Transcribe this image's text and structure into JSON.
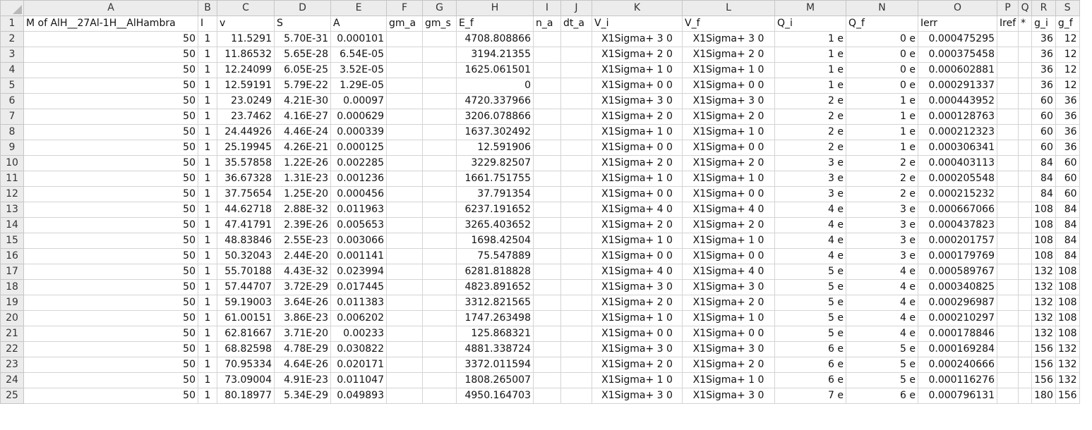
{
  "columns": [
    "A",
    "B",
    "C",
    "D",
    "E",
    "F",
    "G",
    "H",
    "I",
    "J",
    "K",
    "L",
    "M",
    "N",
    "O",
    "P",
    "Q",
    "R",
    "S"
  ],
  "header_row": [
    "M of AlH__27Al-1H__AlHambra",
    "I",
    "v",
    "S",
    "A",
    "gm_a",
    "gm_s",
    "E_f",
    "n_a",
    "dt_a",
    "V_i",
    "V_f",
    "Q_i",
    "Q_f",
    "Ierr",
    "Iref",
    "*",
    "g_i",
    "g_f"
  ],
  "rows": [
    {
      "n": "2",
      "c": [
        "50",
        "1",
        "11.5291",
        "5.70E-31",
        "0.000101",
        "",
        "",
        "4708.808866",
        "",
        "",
        "X1Sigma+ 3 0",
        "X1Sigma+ 3 0",
        "1 e",
        "0 e",
        "0.000475295",
        "",
        "",
        "36",
        "12"
      ]
    },
    {
      "n": "3",
      "c": [
        "50",
        "1",
        "11.86532",
        "5.65E-28",
        "6.54E-05",
        "",
        "",
        "3194.21355",
        "",
        "",
        "X1Sigma+ 2 0",
        "X1Sigma+ 2 0",
        "1 e",
        "0 e",
        "0.000375458",
        "",
        "",
        "36",
        "12"
      ]
    },
    {
      "n": "4",
      "c": [
        "50",
        "1",
        "12.24099",
        "6.05E-25",
        "3.52E-05",
        "",
        "",
        "1625.061501",
        "",
        "",
        "X1Sigma+ 1 0",
        "X1Sigma+ 1 0",
        "1 e",
        "0 e",
        "0.000602881",
        "",
        "",
        "36",
        "12"
      ]
    },
    {
      "n": "5",
      "c": [
        "50",
        "1",
        "12.59191",
        "5.79E-22",
        "1.29E-05",
        "",
        "",
        "0",
        "",
        "",
        "X1Sigma+ 0 0",
        "X1Sigma+ 0 0",
        "1 e",
        "0 e",
        "0.000291337",
        "",
        "",
        "36",
        "12"
      ]
    },
    {
      "n": "6",
      "c": [
        "50",
        "1",
        "23.0249",
        "4.21E-30",
        "0.00097",
        "",
        "",
        "4720.337966",
        "",
        "",
        "X1Sigma+ 3 0",
        "X1Sigma+ 3 0",
        "2 e",
        "1 e",
        "0.000443952",
        "",
        "",
        "60",
        "36"
      ]
    },
    {
      "n": "7",
      "c": [
        "50",
        "1",
        "23.7462",
        "4.16E-27",
        "0.000629",
        "",
        "",
        "3206.078866",
        "",
        "",
        "X1Sigma+ 2 0",
        "X1Sigma+ 2 0",
        "2 e",
        "1 e",
        "0.000128763",
        "",
        "",
        "60",
        "36"
      ]
    },
    {
      "n": "8",
      "c": [
        "50",
        "1",
        "24.44926",
        "4.46E-24",
        "0.000339",
        "",
        "",
        "1637.302492",
        "",
        "",
        "X1Sigma+ 1 0",
        "X1Sigma+ 1 0",
        "2 e",
        "1 e",
        "0.000212323",
        "",
        "",
        "60",
        "36"
      ]
    },
    {
      "n": "9",
      "c": [
        "50",
        "1",
        "25.19945",
        "4.26E-21",
        "0.000125",
        "",
        "",
        "12.591906",
        "",
        "",
        "X1Sigma+ 0 0",
        "X1Sigma+ 0 0",
        "2 e",
        "1 e",
        "0.000306341",
        "",
        "",
        "60",
        "36"
      ]
    },
    {
      "n": "10",
      "c": [
        "50",
        "1",
        "35.57858",
        "1.22E-26",
        "0.002285",
        "",
        "",
        "3229.82507",
        "",
        "",
        "X1Sigma+ 2 0",
        "X1Sigma+ 2 0",
        "3 e",
        "2 e",
        "0.000403113",
        "",
        "",
        "84",
        "60"
      ]
    },
    {
      "n": "11",
      "c": [
        "50",
        "1",
        "36.67328",
        "1.31E-23",
        "0.001236",
        "",
        "",
        "1661.751755",
        "",
        "",
        "X1Sigma+ 1 0",
        "X1Sigma+ 1 0",
        "3 e",
        "2 e",
        "0.000205548",
        "",
        "",
        "84",
        "60"
      ]
    },
    {
      "n": "12",
      "c": [
        "50",
        "1",
        "37.75654",
        "1.25E-20",
        "0.000456",
        "",
        "",
        "37.791354",
        "",
        "",
        "X1Sigma+ 0 0",
        "X1Sigma+ 0 0",
        "3 e",
        "2 e",
        "0.000215232",
        "",
        "",
        "84",
        "60"
      ]
    },
    {
      "n": "13",
      "c": [
        "50",
        "1",
        "44.62718",
        "2.88E-32",
        "0.011963",
        "",
        "",
        "6237.191652",
        "",
        "",
        "X1Sigma+ 4 0",
        "X1Sigma+ 4 0",
        "4 e",
        "3 e",
        "0.000667066",
        "",
        "",
        "108",
        "84"
      ]
    },
    {
      "n": "14",
      "c": [
        "50",
        "1",
        "47.41791",
        "2.39E-26",
        "0.005653",
        "",
        "",
        "3265.403652",
        "",
        "",
        "X1Sigma+ 2 0",
        "X1Sigma+ 2 0",
        "4 e",
        "3 e",
        "0.000437823",
        "",
        "",
        "108",
        "84"
      ]
    },
    {
      "n": "15",
      "c": [
        "50",
        "1",
        "48.83846",
        "2.55E-23",
        "0.003066",
        "",
        "",
        "1698.42504",
        "",
        "",
        "X1Sigma+ 1 0",
        "X1Sigma+ 1 0",
        "4 e",
        "3 e",
        "0.000201757",
        "",
        "",
        "108",
        "84"
      ]
    },
    {
      "n": "16",
      "c": [
        "50",
        "1",
        "50.32043",
        "2.44E-20",
        "0.001141",
        "",
        "",
        "75.547889",
        "",
        "",
        "X1Sigma+ 0 0",
        "X1Sigma+ 0 0",
        "4 e",
        "3 e",
        "0.000179769",
        "",
        "",
        "108",
        "84"
      ]
    },
    {
      "n": "17",
      "c": [
        "50",
        "1",
        "55.70188",
        "4.43E-32",
        "0.023994",
        "",
        "",
        "6281.818828",
        "",
        "",
        "X1Sigma+ 4 0",
        "X1Sigma+ 4 0",
        "5 e",
        "4 e",
        "0.000589767",
        "",
        "",
        "132",
        "108"
      ]
    },
    {
      "n": "18",
      "c": [
        "50",
        "1",
        "57.44707",
        "3.72E-29",
        "0.017445",
        "",
        "",
        "4823.891652",
        "",
        "",
        "X1Sigma+ 3 0",
        "X1Sigma+ 3 0",
        "5 e",
        "4 e",
        "0.000340825",
        "",
        "",
        "132",
        "108"
      ]
    },
    {
      "n": "19",
      "c": [
        "50",
        "1",
        "59.19003",
        "3.64E-26",
        "0.011383",
        "",
        "",
        "3312.821565",
        "",
        "",
        "X1Sigma+ 2 0",
        "X1Sigma+ 2 0",
        "5 e",
        "4 e",
        "0.000296987",
        "",
        "",
        "132",
        "108"
      ]
    },
    {
      "n": "20",
      "c": [
        "50",
        "1",
        "61.00151",
        "3.86E-23",
        "0.006202",
        "",
        "",
        "1747.263498",
        "",
        "",
        "X1Sigma+ 1 0",
        "X1Sigma+ 1 0",
        "5 e",
        "4 e",
        "0.000210297",
        "",
        "",
        "132",
        "108"
      ]
    },
    {
      "n": "21",
      "c": [
        "50",
        "1",
        "62.81667",
        "3.71E-20",
        "0.00233",
        "",
        "",
        "125.868321",
        "",
        "",
        "X1Sigma+ 0 0",
        "X1Sigma+ 0 0",
        "5 e",
        "4 e",
        "0.000178846",
        "",
        "",
        "132",
        "108"
      ]
    },
    {
      "n": "22",
      "c": [
        "50",
        "1",
        "68.82598",
        "4.78E-29",
        "0.030822",
        "",
        "",
        "4881.338724",
        "",
        "",
        "X1Sigma+ 3 0",
        "X1Sigma+ 3 0",
        "6 e",
        "5 e",
        "0.000169284",
        "",
        "",
        "156",
        "132"
      ]
    },
    {
      "n": "23",
      "c": [
        "50",
        "1",
        "70.95334",
        "4.64E-26",
        "0.020171",
        "",
        "",
        "3372.011594",
        "",
        "",
        "X1Sigma+ 2 0",
        "X1Sigma+ 2 0",
        "6 e",
        "5 e",
        "0.000240666",
        "",
        "",
        "156",
        "132"
      ]
    },
    {
      "n": "24",
      "c": [
        "50",
        "1",
        "73.09004",
        "4.91E-23",
        "0.011047",
        "",
        "",
        "1808.265007",
        "",
        "",
        "X1Sigma+ 1 0",
        "X1Sigma+ 1 0",
        "6 e",
        "5 e",
        "0.000116276",
        "",
        "",
        "156",
        "132"
      ]
    },
    {
      "n": "25",
      "c": [
        "50",
        "1",
        "80.18977",
        "5.34E-29",
        "0.049893",
        "",
        "",
        "4950.164703",
        "",
        "",
        "X1Sigma+ 3 0",
        "X1Sigma+ 3 0",
        "7 e",
        "6 e",
        "0.000796131",
        "",
        "",
        "180",
        "156"
      ]
    }
  ]
}
